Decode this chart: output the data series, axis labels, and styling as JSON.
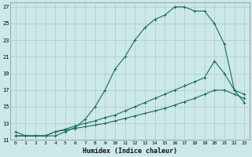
{
  "xlabel": "Humidex (Indice chaleur)",
  "ylabel": "",
  "xlim": [
    -0.5,
    23.5
  ],
  "ylim": [
    11,
    27.5
  ],
  "yticks": [
    11,
    13,
    15,
    17,
    19,
    21,
    23,
    25,
    27
  ],
  "xticks": [
    0,
    1,
    2,
    3,
    4,
    5,
    6,
    7,
    8,
    9,
    10,
    11,
    12,
    13,
    14,
    15,
    16,
    17,
    18,
    19,
    20,
    21,
    22,
    23
  ],
  "bg_color": "#cce8e8",
  "grid_color": "#aacccc",
  "line_color": "#1a6b5a",
  "curve1": [
    12.0,
    11.5,
    11.5,
    11.5,
    11.5,
    12.0,
    12.5,
    13.5,
    15.0,
    17.0,
    19.5,
    21.0,
    23.0,
    24.5,
    25.5,
    26.0,
    27.0,
    27.0,
    26.5,
    26.5,
    25.0,
    22.5,
    17.0,
    15.5
  ],
  "curve2": [
    11.5,
    11.5,
    11.5,
    11.5,
    12.0,
    12.2,
    12.4,
    12.6,
    12.8,
    13.0,
    13.3,
    13.6,
    13.9,
    14.2,
    14.5,
    14.8,
    15.2,
    15.6,
    16.0,
    16.5,
    17.0,
    17.0,
    16.5,
    16.0
  ],
  "curve3": [
    11.5,
    11.5,
    11.5,
    11.5,
    12.0,
    12.3,
    12.7,
    13.0,
    13.3,
    13.7,
    14.0,
    14.5,
    15.0,
    15.5,
    16.0,
    16.5,
    17.0,
    17.5,
    18.0,
    18.5,
    20.5,
    19.0,
    17.0,
    16.5
  ]
}
